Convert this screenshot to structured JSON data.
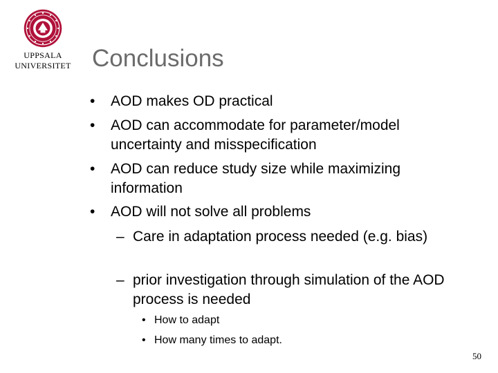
{
  "logo": {
    "line1": "UPPSALA",
    "line2": "UNIVERSITET"
  },
  "slide": {
    "title": "Conclusions",
    "bullets": [
      "AOD makes OD practical",
      "AOD can accommodate for parameter/model uncertainty and misspecification",
      "AOD can reduce study size while maximizing information",
      "AOD will not solve all problems"
    ],
    "sub_bullets": [
      "Care in adaptation process needed (e.g. bias)",
      "prior investigation through simulation of the AOD process is needed"
    ],
    "sub_sub_bullets": [
      "How to adapt",
      "How many times to adapt."
    ],
    "markers": {
      "bullet": "•",
      "dash": "–"
    },
    "page_number": "50"
  },
  "colors": {
    "title": "#6b6b6b",
    "seal": "#b0123a"
  }
}
